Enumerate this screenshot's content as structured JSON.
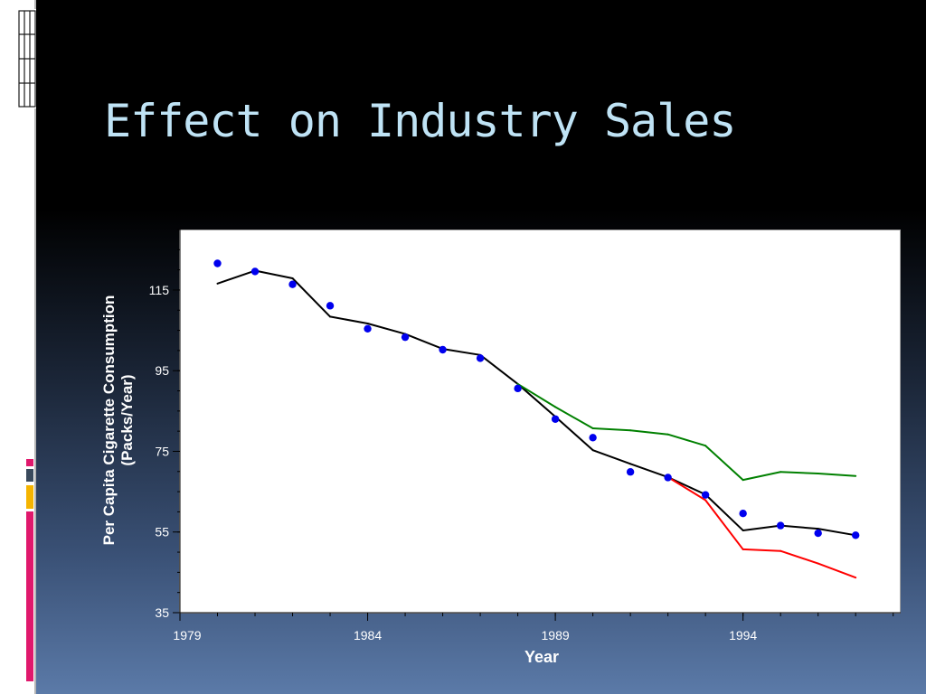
{
  "slide": {
    "title": "Effect on Industry Sales"
  },
  "colors": {
    "title": "#bfe3f5",
    "actual_points": "#0000ee",
    "black_line": "#000000",
    "green_line": "#008000",
    "red_line": "#ff0000",
    "accent_bars": [
      "#e0186c",
      "#3a4a5c",
      "#f5b400",
      "#e0186c"
    ]
  },
  "chart_data": {
    "type": "line",
    "title": "",
    "xlabel": "Year",
    "ylabel_lines": [
      "Per Capita Cigarette Consumption",
      "(Packs/Year)"
    ],
    "xlim": [
      1979,
      1998.2
    ],
    "ylim": [
      35,
      130
    ],
    "x_ticks": [
      1979,
      1984,
      1989,
      1994
    ],
    "y_ticks": [
      35,
      55,
      75,
      95,
      115
    ],
    "grid": false,
    "legend": "none",
    "series": [
      {
        "style": "line",
        "color": "#000000",
        "x": [
          1980,
          1981,
          1982,
          1983,
          1984,
          1985,
          1986,
          1987,
          1988,
          1989,
          1990,
          1991,
          1992,
          1993,
          1994,
          1995,
          1996,
          1997
        ],
        "y": [
          116.6,
          119.8,
          117.9,
          108.4,
          106.7,
          104.1,
          100.4,
          98.9,
          91.7,
          83.6,
          75.3,
          71.9,
          68.6,
          64.3,
          55.4,
          56.6,
          55.8,
          54.2
        ]
      },
      {
        "style": "line",
        "color": "#008000",
        "x": [
          1988,
          1989,
          1990,
          1991,
          1992,
          1993,
          1994,
          1995,
          1996,
          1997
        ],
        "y": [
          91.7,
          86.0,
          80.7,
          80.2,
          79.2,
          76.4,
          67.9,
          69.9,
          69.5,
          68.9
        ]
      },
      {
        "style": "line",
        "color": "#ff0000",
        "x": [
          1992,
          1993,
          1994,
          1995,
          1996,
          1997
        ],
        "y": [
          68.6,
          62.9,
          50.7,
          50.3,
          47.2,
          43.7
        ]
      },
      {
        "style": "points",
        "color": "#0000ee",
        "x": [
          1980,
          1981,
          1982,
          1983,
          1984,
          1985,
          1986,
          1987,
          1988,
          1989,
          1990,
          1991,
          1992,
          1993,
          1994,
          1995,
          1996,
          1997
        ],
        "y": [
          121.6,
          119.6,
          116.4,
          111.1,
          105.4,
          103.3,
          100.2,
          98.1,
          90.6,
          83.0,
          78.4,
          69.9,
          68.5,
          64.2,
          59.6,
          56.6,
          54.7,
          54.2
        ]
      }
    ]
  }
}
